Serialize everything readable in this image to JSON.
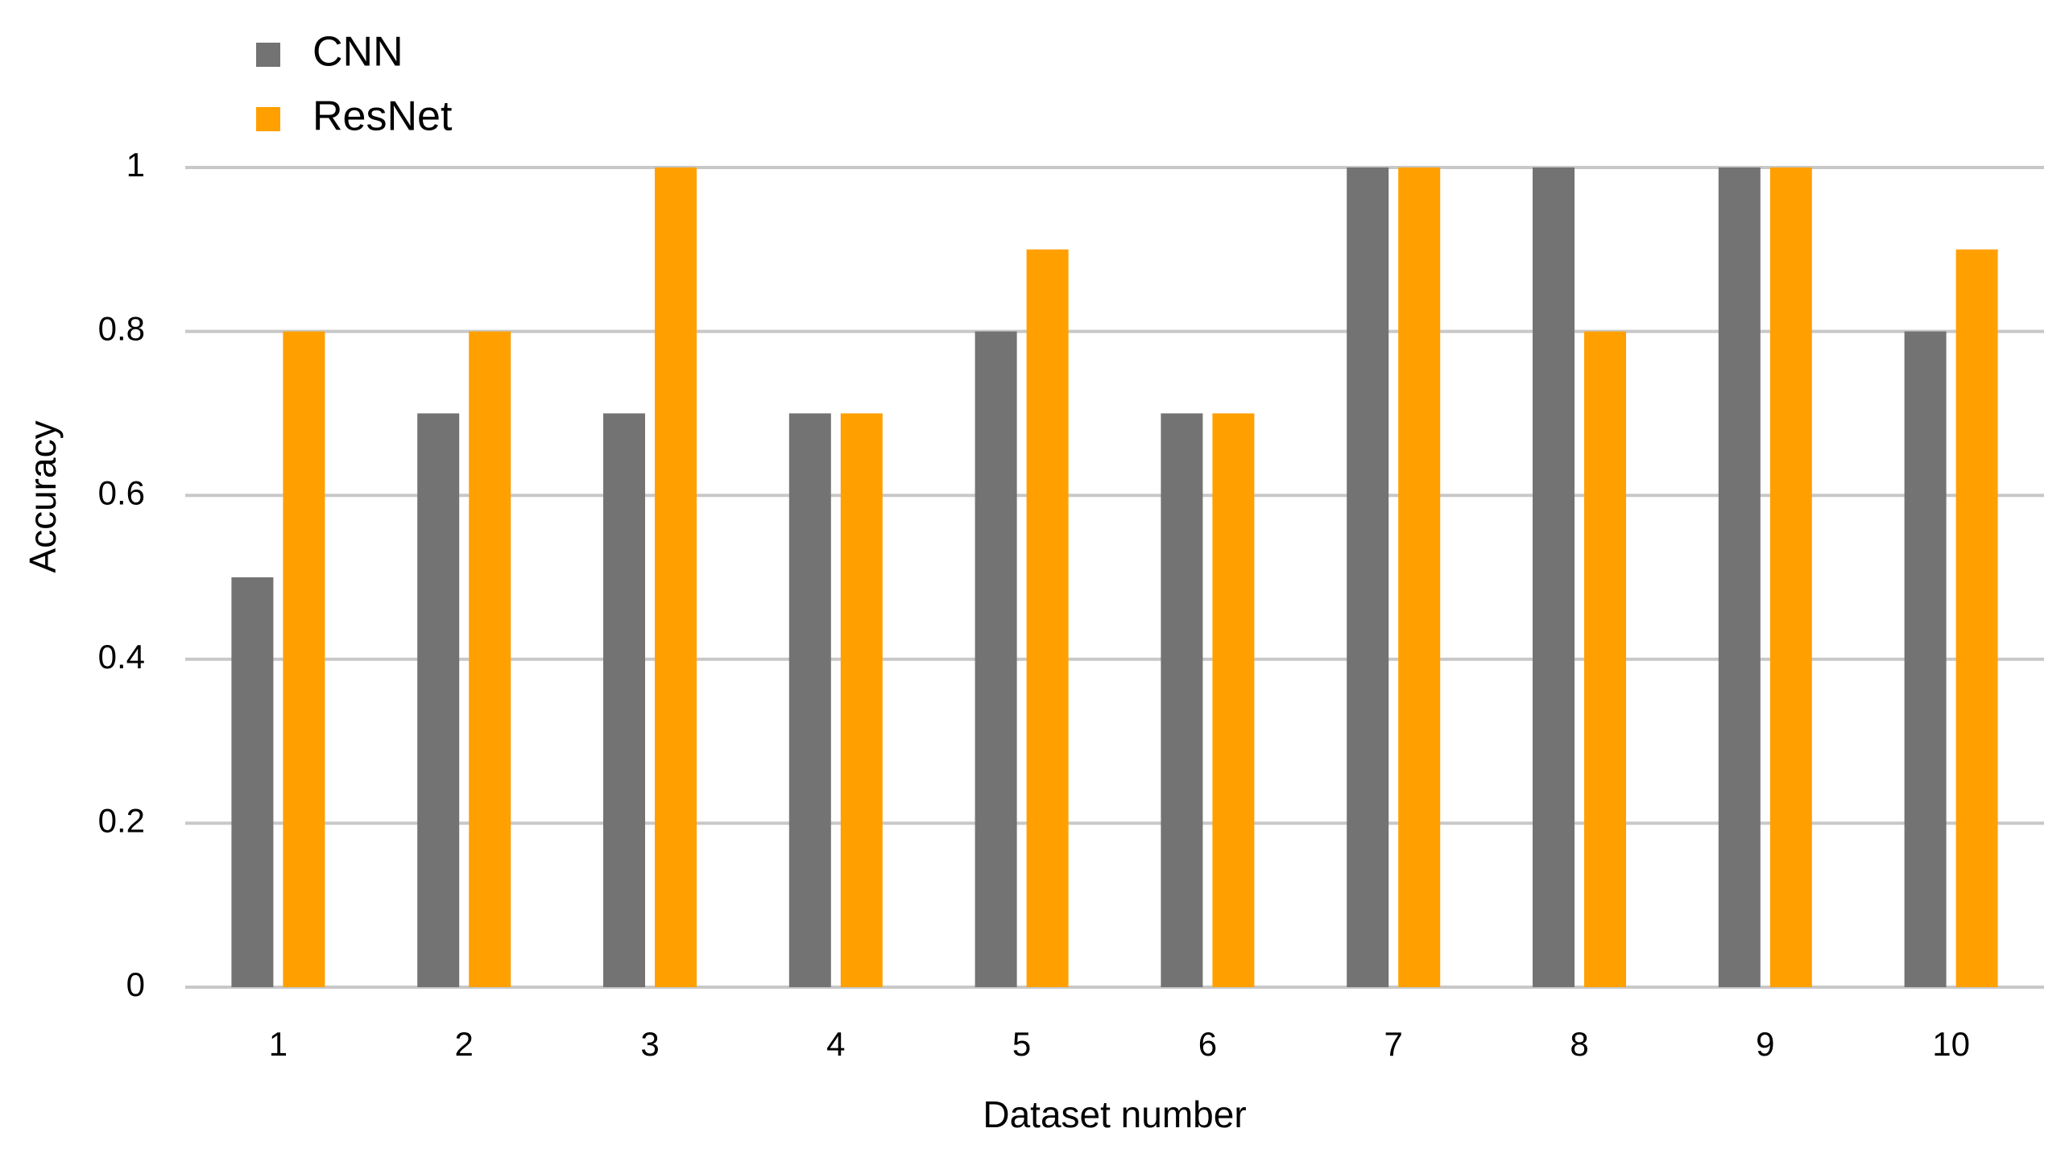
{
  "chart_data": {
    "type": "bar",
    "x_label": "Dataset number",
    "y_label": "Accuracy",
    "categories": [
      "1",
      "2",
      "3",
      "4",
      "5",
      "6",
      "7",
      "8",
      "9",
      "10"
    ],
    "series": [
      {
        "name": "CNN",
        "color": "#737373",
        "values": [
          0.5,
          0.7,
          0.7,
          0.7,
          0.8,
          0.7,
          1,
          1,
          1,
          0.8
        ]
      },
      {
        "name": "ResNet",
        "color": "#ffa000",
        "values": [
          0.8,
          0.8,
          1,
          0.7,
          0.9,
          0.7,
          1,
          0.8,
          1,
          0.9
        ]
      }
    ],
    "ylim": [
      0,
      1
    ],
    "yticks": [
      0,
      0.2,
      0.4,
      0.6,
      0.8,
      1
    ],
    "grid": true,
    "legend": "top-left"
  }
}
